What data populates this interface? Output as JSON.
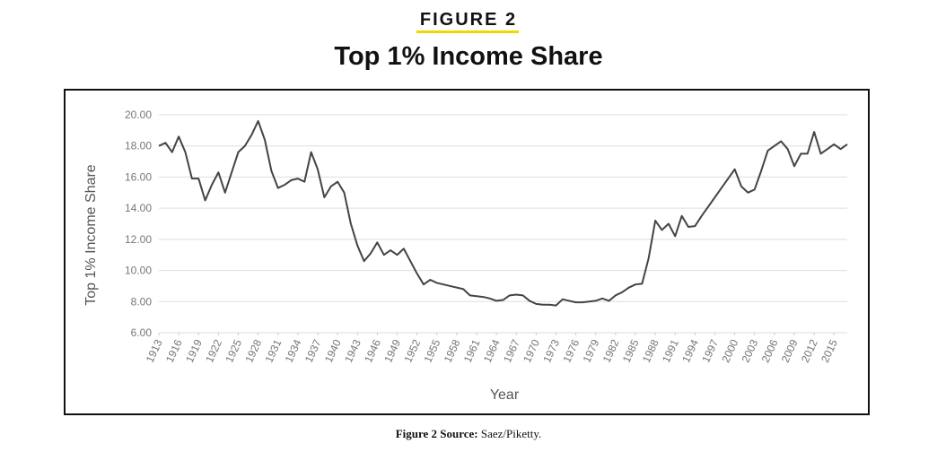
{
  "kicker": "FIGURE 2",
  "source_label": "Figure 2 Source:",
  "source": "Saez/Piketty.",
  "chart_data": {
    "type": "line",
    "title": "Top 1% Income Share",
    "x_label": "Year",
    "y_label": "Top 1% Income Share",
    "x": [
      1913,
      1914,
      1915,
      1916,
      1917,
      1918,
      1919,
      1920,
      1921,
      1922,
      1923,
      1924,
      1925,
      1926,
      1927,
      1928,
      1929,
      1930,
      1931,
      1932,
      1933,
      1934,
      1935,
      1936,
      1937,
      1938,
      1939,
      1940,
      1941,
      1942,
      1943,
      1944,
      1945,
      1946,
      1947,
      1948,
      1949,
      1950,
      1951,
      1952,
      1953,
      1954,
      1955,
      1956,
      1957,
      1958,
      1959,
      1960,
      1961,
      1962,
      1963,
      1964,
      1965,
      1966,
      1967,
      1968,
      1969,
      1970,
      1971,
      1972,
      1973,
      1974,
      1975,
      1976,
      1977,
      1978,
      1979,
      1980,
      1981,
      1982,
      1983,
      1984,
      1985,
      1986,
      1987,
      1988,
      1989,
      1990,
      1991,
      1992,
      1993,
      1994,
      1995,
      1996,
      1997,
      1998,
      1999,
      2000,
      2001,
      2002,
      2003,
      2004,
      2005,
      2006,
      2007,
      2008,
      2009,
      2010,
      2011,
      2012,
      2013,
      2014,
      2015,
      2016,
      2017
    ],
    "values": [
      18.0,
      18.2,
      17.6,
      18.6,
      17.6,
      15.9,
      15.9,
      14.5,
      15.5,
      16.3,
      15.0,
      16.3,
      17.6,
      18.0,
      18.7,
      19.6,
      18.4,
      16.4,
      15.3,
      15.5,
      15.8,
      15.9,
      15.7,
      17.6,
      16.5,
      14.7,
      15.4,
      15.7,
      15.0,
      13.0,
      11.6,
      10.6,
      11.1,
      11.8,
      11.0,
      11.3,
      11.0,
      11.4,
      10.6,
      9.8,
      9.1,
      9.4,
      9.2,
      9.1,
      9.0,
      8.9,
      8.8,
      8.4,
      8.35,
      8.3,
      8.2,
      8.05,
      8.1,
      8.4,
      8.45,
      8.4,
      8.05,
      7.85,
      7.8,
      7.8,
      7.75,
      8.15,
      8.05,
      7.95,
      7.95,
      8.0,
      8.05,
      8.2,
      8.05,
      8.4,
      8.6,
      8.9,
      9.1,
      9.15,
      10.8,
      13.2,
      12.6,
      13.0,
      12.2,
      13.5,
      12.8,
      12.85,
      13.5,
      14.1,
      14.7,
      15.3,
      15.9,
      16.5,
      15.4,
      15.0,
      15.2,
      16.4,
      17.7,
      18.0,
      18.3,
      17.8,
      16.7,
      17.5,
      17.5,
      18.9,
      17.5,
      17.8,
      18.1,
      17.8,
      18.1
    ],
    "color": "#444444",
    "xlim": [
      1913,
      2017
    ],
    "xticks": [
      1913,
      1916,
      1919,
      1922,
      1925,
      1928,
      1931,
      1934,
      1937,
      1940,
      1943,
      1946,
      1949,
      1952,
      1955,
      1958,
      1961,
      1964,
      1967,
      1970,
      1973,
      1976,
      1979,
      1982,
      1985,
      1988,
      1991,
      1994,
      1997,
      2000,
      2003,
      2006,
      2009,
      2012,
      2015
    ],
    "ylim": [
      6,
      20
    ],
    "yticks": [
      {
        "value": 6,
        "label": "6.00"
      },
      {
        "value": 8,
        "label": "8.00"
      },
      {
        "value": 10,
        "label": "10.00"
      },
      {
        "value": 12,
        "label": "12.00"
      },
      {
        "value": 14,
        "label": "14.00"
      },
      {
        "value": 16,
        "label": "16.00"
      },
      {
        "value": 18,
        "label": "18.00"
      },
      {
        "value": 20,
        "label": "20.00"
      }
    ],
    "grid": true
  }
}
